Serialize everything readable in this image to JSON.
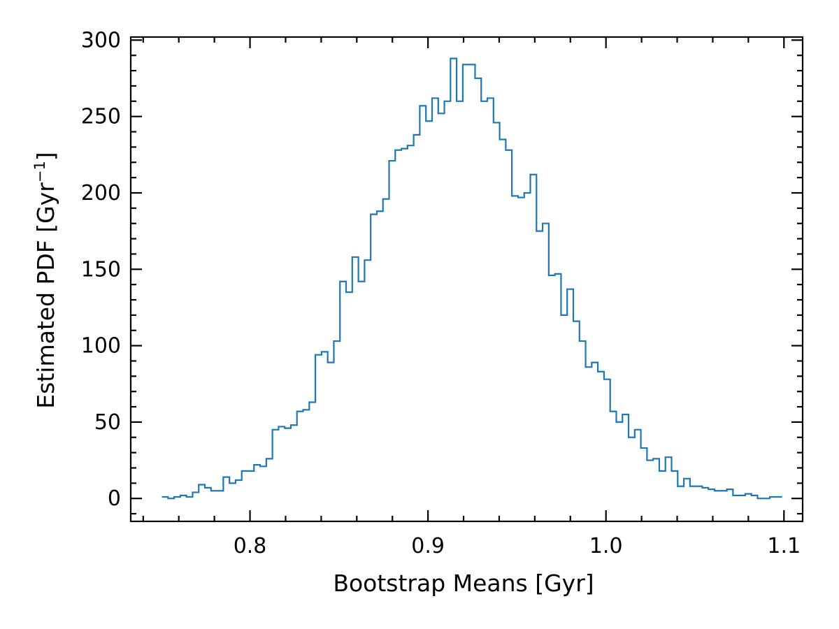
{
  "chart_data": {
    "type": "histogram",
    "xlabel": "Bootstrap Means [Gyr]",
    "ylabel_main": "Estimated PDF [Gyr",
    "ylabel_sup": "−1",
    "ylabel_close": "]",
    "xlim": [
      0.733,
      1.1105
    ],
    "ylim": [
      -15,
      302
    ],
    "x_ticks": [
      {
        "value": 0.8,
        "label": "0.8"
      },
      {
        "value": 0.9,
        "label": "0.9"
      },
      {
        "value": 1.0,
        "label": "1.0"
      },
      {
        "value": 1.1,
        "label": "1.1"
      }
    ],
    "x_minor_step": 0.02,
    "y_ticks": [
      {
        "value": 0,
        "label": "0"
      },
      {
        "value": 50,
        "label": "50"
      },
      {
        "value": 100,
        "label": "100"
      },
      {
        "value": 150,
        "label": "150"
      },
      {
        "value": 200,
        "label": "200"
      },
      {
        "value": 250,
        "label": "250"
      },
      {
        "value": 300,
        "label": "300"
      }
    ],
    "y_minor_step": 10,
    "grid": false,
    "line_color": "#1f77b4",
    "bin_start": 0.7505,
    "bin_width": 0.00345,
    "values": [
      1,
      0,
      1,
      2,
      1,
      4,
      9,
      7,
      5,
      5,
      14,
      10,
      12,
      18,
      18,
      22,
      21,
      26,
      45,
      47,
      46,
      48,
      57,
      58,
      63,
      94,
      96,
      89,
      103,
      142,
      135,
      158,
      142,
      156,
      186,
      188,
      196,
      221,
      228,
      229,
      231,
      238,
      257,
      247,
      262,
      252,
      260,
      288,
      260,
      284,
      284,
      275,
      260,
      262,
      246,
      235,
      228,
      198,
      197,
      200,
      212,
      175,
      180,
      146,
      147,
      120,
      137,
      116,
      103,
      86,
      89,
      83,
      78,
      57,
      50,
      55,
      40,
      45,
      33,
      25,
      26,
      18,
      27,
      18,
      8,
      13,
      8,
      8,
      7,
      6,
      5,
      5,
      6,
      2,
      2,
      3,
      2,
      0,
      0,
      1,
      1
    ]
  }
}
